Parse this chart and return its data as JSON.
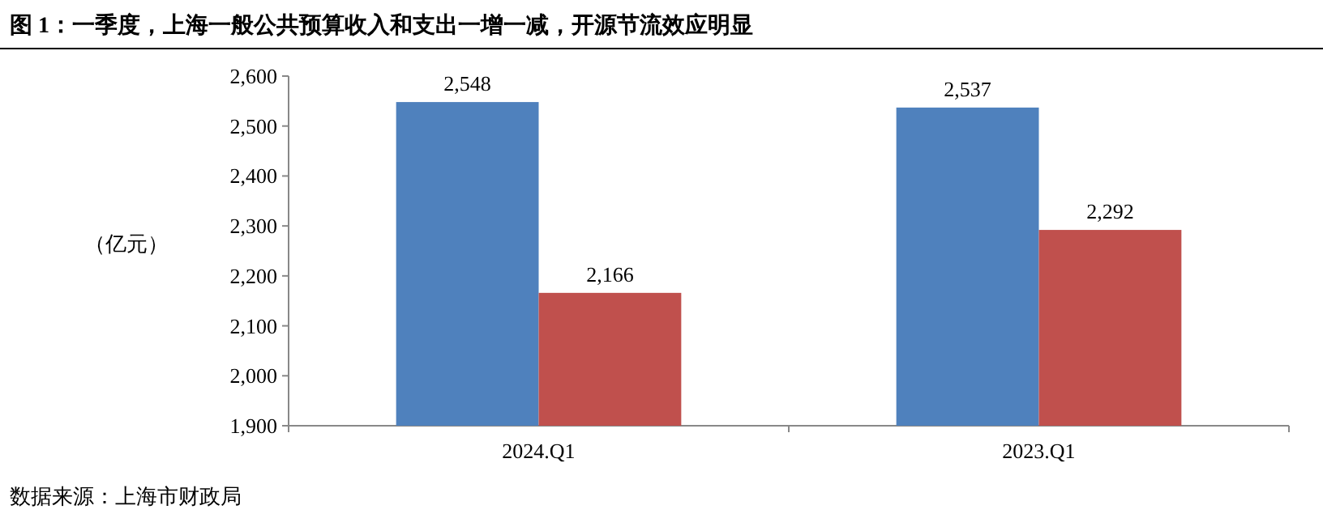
{
  "chart_data": {
    "type": "bar",
    "title": "图 1：一季度，上海一般公共预算收入和支出一增一减，开源节流效应明显",
    "ylabel": "（亿元）",
    "annotations": [
      "数据来源：上海市财政局"
    ],
    "categories": [
      "2024.Q1",
      "2023.Q1"
    ],
    "series": [
      {
        "color": "#4f81bd",
        "values": [
          2548,
          2537
        ],
        "value_labels": [
          "2,548",
          "2,537"
        ]
      },
      {
        "color": "#c0504d",
        "values": [
          2166,
          2292
        ],
        "value_labels": [
          "2,166",
          "2,292"
        ]
      }
    ],
    "ylim": [
      1900,
      2600
    ],
    "yticks": [
      {
        "value": 1900,
        "label": "1,900"
      },
      {
        "value": 2000,
        "label": "2,000"
      },
      {
        "value": 2100,
        "label": "2,100"
      },
      {
        "value": 2200,
        "label": "2,200"
      },
      {
        "value": 2300,
        "label": "2,300"
      },
      {
        "value": 2400,
        "label": "2,400"
      },
      {
        "value": 2500,
        "label": "2,500"
      },
      {
        "value": 2600,
        "label": "2,600"
      }
    ],
    "grid": false
  }
}
